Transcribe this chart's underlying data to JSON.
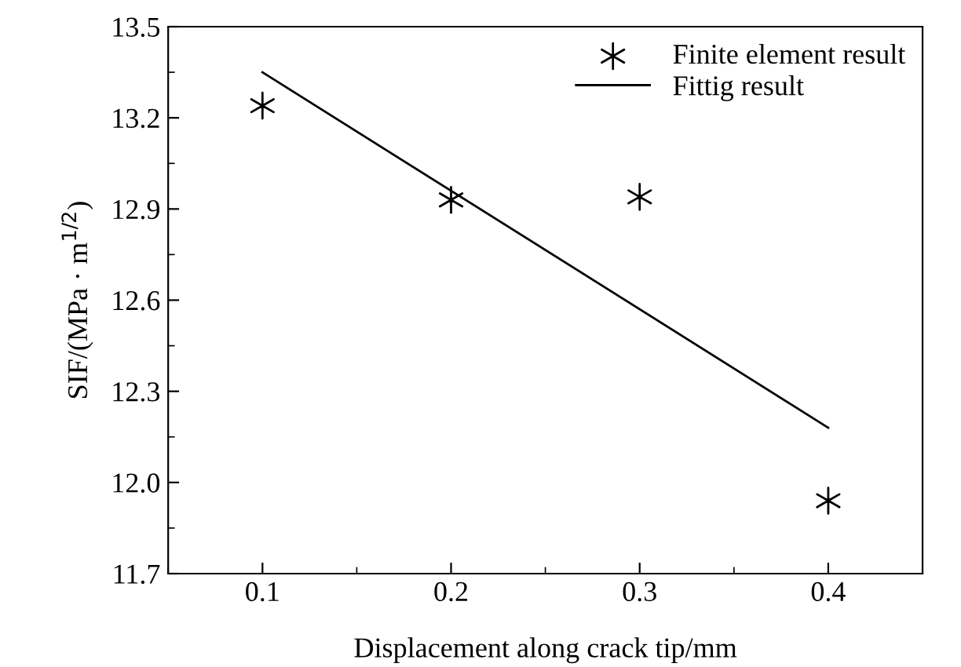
{
  "chart_data": {
    "type": "scatter",
    "xlabel": "Displacement along crack tip/mm",
    "ylabel": "SIF/(MPa · m$^{1/2}$)",
    "xlim": [
      0.05,
      0.45
    ],
    "xticks": [
      0.1,
      0.2,
      0.3,
      0.4
    ],
    "ylim": [
      11.7,
      13.5
    ],
    "yticks": [
      11.7,
      {
        "value": 12,
        "label": "12.0"
      },
      12.3,
      12.6,
      12.9,
      13.2,
      13.5
    ],
    "legend": "top right",
    "grid": false,
    "series": [
      {
        "name": "Finite element result",
        "marker": "cross",
        "color": "#000000",
        "x": [
          0.1,
          0.2,
          0.3,
          0.4
        ],
        "values": [
          13.24,
          12.93,
          12.94,
          11.94
        ]
      },
      {
        "name": "Fittig result",
        "type": "line",
        "marker": "none",
        "line_style": "solid",
        "color": "#000000",
        "x": [
          0.1,
          0.4
        ],
        "values": [
          13.35,
          12.18
        ]
      }
    ]
  }
}
